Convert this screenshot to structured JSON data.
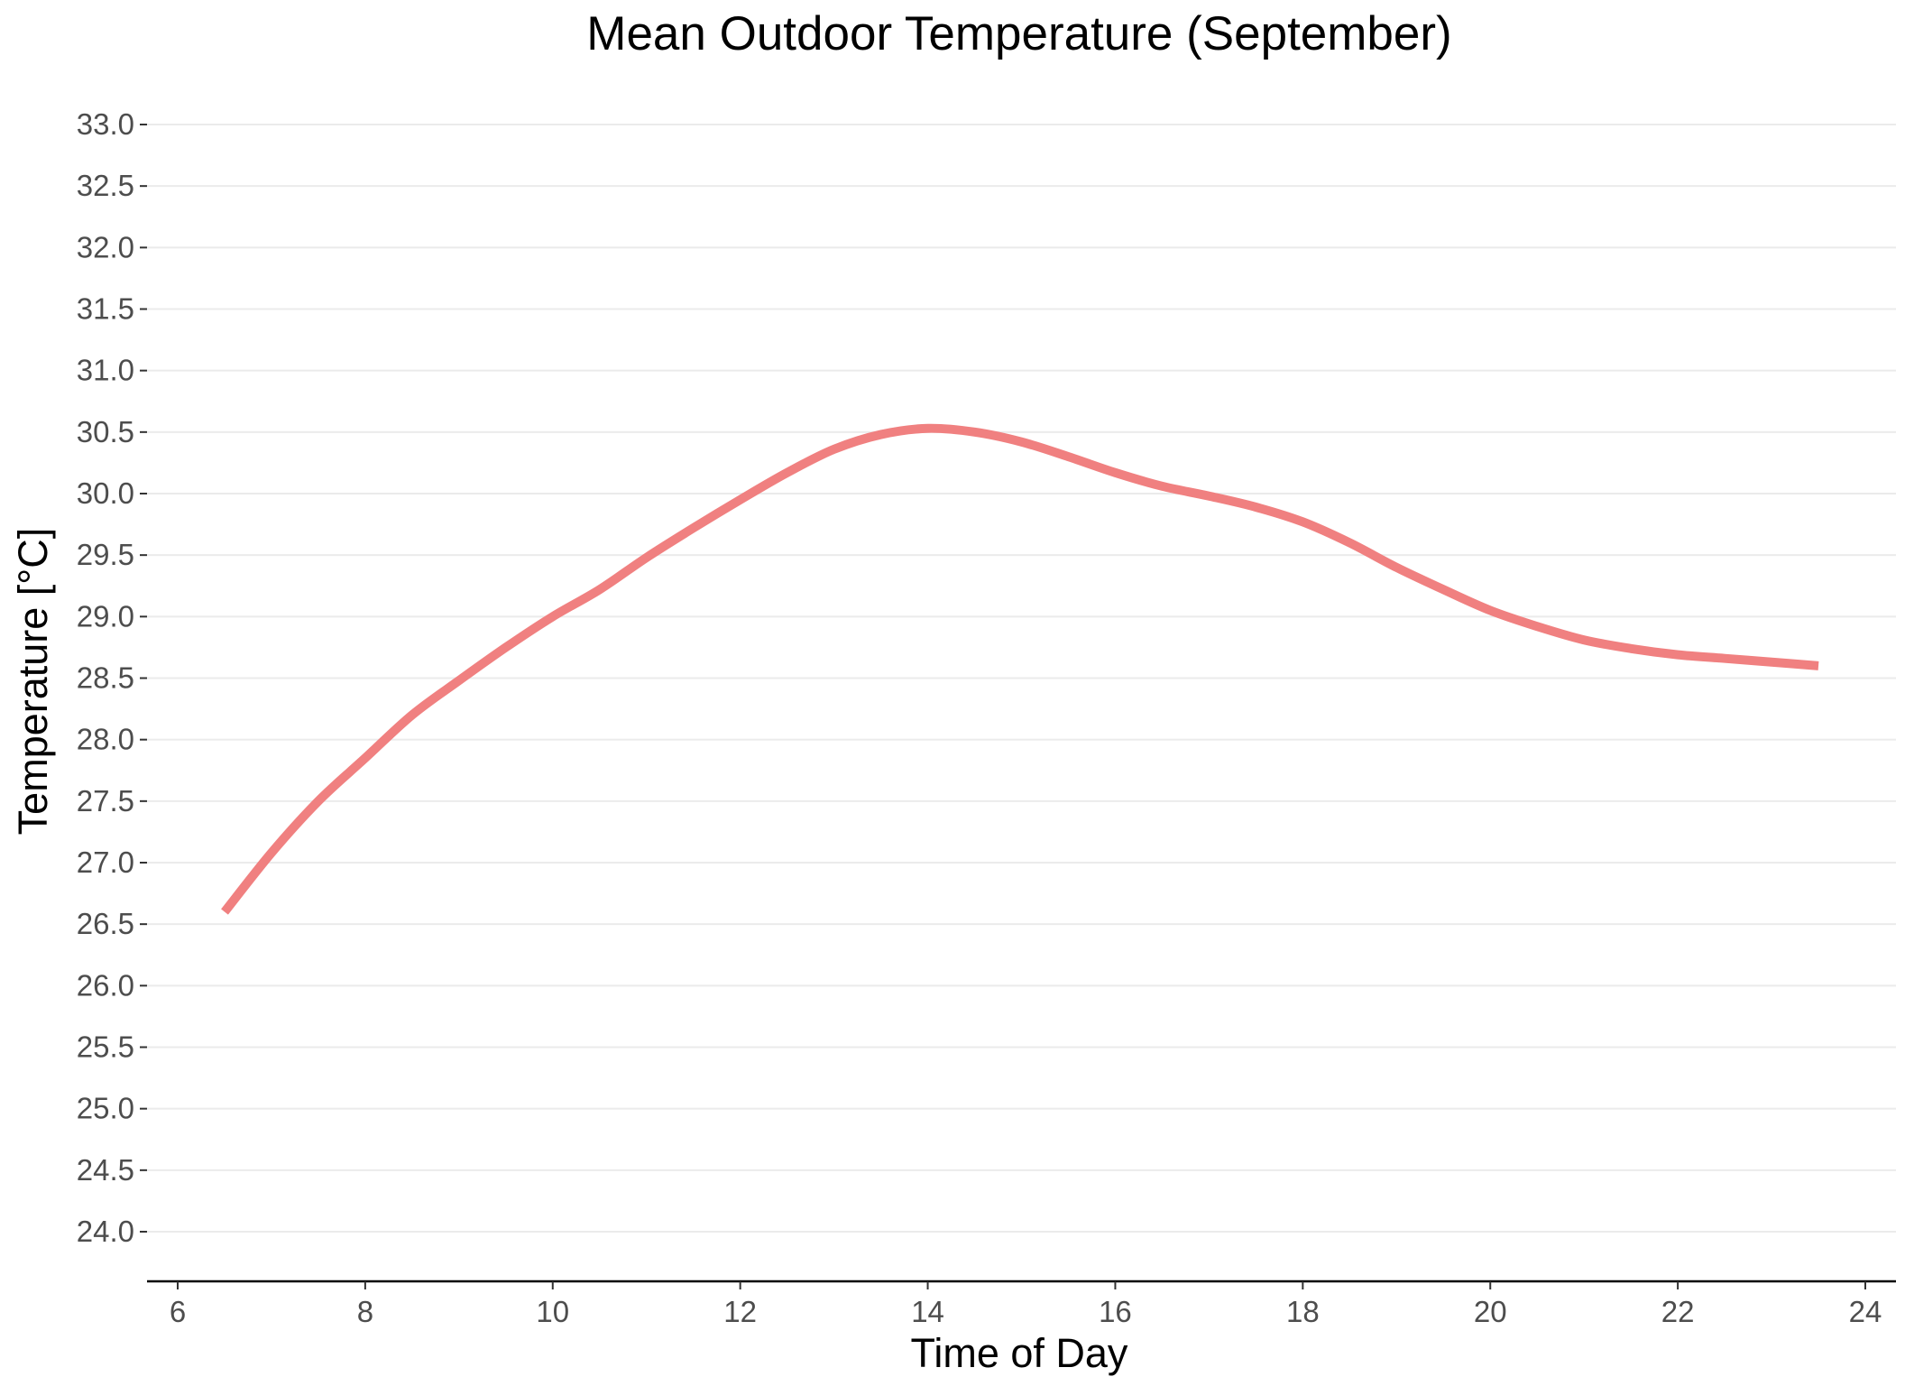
{
  "chart_data": {
    "type": "line",
    "title": "Mean Outdoor Temperature (September)",
    "xlabel": "Time of Day",
    "ylabel": "Temperature [°C]",
    "xlim": [
      5.5,
      24.3
    ],
    "ylim": [
      23.6,
      33.3
    ],
    "x_ticks": [
      6,
      8,
      10,
      12,
      14,
      16,
      18,
      20,
      22,
      24
    ],
    "y_ticks": [
      24.0,
      24.5,
      25.0,
      25.5,
      26.0,
      26.5,
      27.0,
      27.5,
      28.0,
      28.5,
      29.0,
      29.5,
      30.0,
      30.5,
      31.0,
      31.5,
      32.0,
      32.5,
      33.0
    ],
    "grid": "horizontal major",
    "legend": "none",
    "series": [
      {
        "color": "#f08080",
        "x": [
          6.5,
          7.0,
          7.5,
          8.0,
          8.5,
          9.0,
          9.5,
          10.0,
          10.5,
          11.0,
          11.5,
          12.0,
          12.5,
          13.0,
          13.5,
          14.0,
          14.5,
          15.0,
          15.5,
          16.0,
          16.5,
          17.0,
          17.5,
          18.0,
          18.5,
          19.0,
          19.5,
          20.0,
          20.5,
          21.0,
          21.5,
          22.0,
          22.5,
          23.0,
          23.5
        ],
        "y": [
          26.6,
          27.08,
          27.5,
          27.85,
          28.2,
          28.48,
          28.75,
          29.0,
          29.22,
          29.48,
          29.72,
          29.95,
          30.17,
          30.36,
          30.48,
          30.53,
          30.5,
          30.42,
          30.3,
          30.17,
          30.06,
          29.98,
          29.89,
          29.77,
          29.6,
          29.4,
          29.22,
          29.05,
          28.92,
          28.81,
          28.74,
          28.69,
          28.66,
          28.63,
          28.6
        ]
      }
    ]
  }
}
